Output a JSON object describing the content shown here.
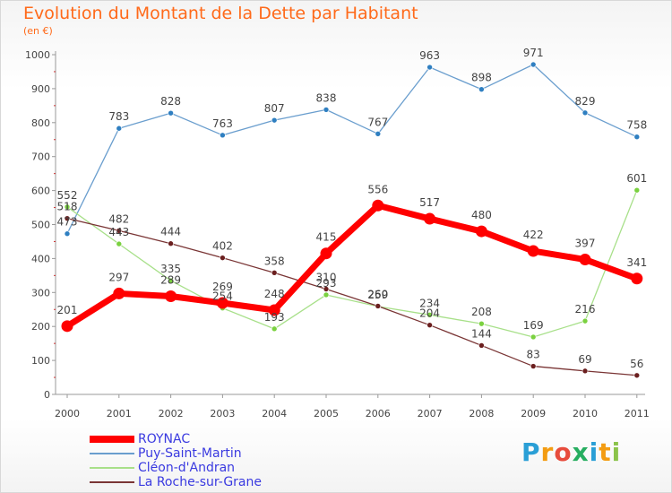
{
  "header": {
    "title": "Evolution du Montant de la Dette par Habitant",
    "subtitle": "(en €)"
  },
  "logo": {
    "text": "Proxiti",
    "letter_colors": [
      "#2a9fd6",
      "#f39c12",
      "#e74c3c",
      "#27ae60",
      "#2a9fd6",
      "#f39c12",
      "#8bc34a"
    ]
  },
  "chart_data": {
    "type": "line",
    "title": "Evolution du Montant de la Dette par Habitant",
    "ylabel": "(en €)",
    "xlabel": "",
    "ylim": [
      0,
      1000
    ],
    "yticks": [
      0,
      100,
      200,
      300,
      400,
      500,
      600,
      700,
      800,
      900,
      1000
    ],
    "categories": [
      "2000",
      "2001",
      "2002",
      "2003",
      "2004",
      "2005",
      "2006",
      "2007",
      "2008",
      "2009",
      "2010",
      "2011"
    ],
    "grid": "none",
    "legend_position": "bottom-left",
    "series": [
      {
        "name": "ROYNAC",
        "color": "#ff0000",
        "emphasis": true,
        "values": [
          201,
          297,
          289,
          269,
          248,
          415,
          556,
          517,
          480,
          422,
          397,
          341
        ]
      },
      {
        "name": "Puy-Saint-Martin",
        "color": "#6a9ece",
        "dot": "#2f7fc1",
        "values": [
          473,
          783,
          828,
          763,
          807,
          838,
          767,
          963,
          898,
          971,
          829,
          758
        ]
      },
      {
        "name": "Cléon-d'Andran",
        "color": "#a8e08a",
        "dot": "#7ad13f",
        "values": [
          552,
          443,
          335,
          254,
          193,
          293,
          259,
          234,
          208,
          169,
          216,
          601
        ]
      },
      {
        "name": "La Roche-sur-Grane",
        "color": "#7a3535",
        "dot": "#6b1f1f",
        "values": [
          518,
          482,
          444,
          402,
          358,
          310,
          260,
          204,
          144,
          83,
          69,
          56
        ]
      }
    ]
  }
}
